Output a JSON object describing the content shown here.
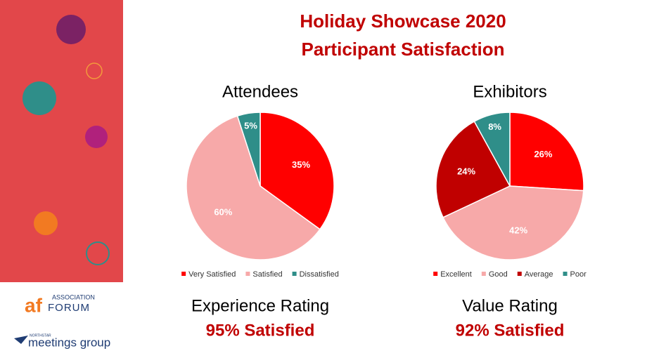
{
  "title": "Holiday Showcase 2020",
  "subtitle": "Participant Satisfaction",
  "chart_data": [
    {
      "type": "pie",
      "title": "Attendees",
      "categories": [
        "Very Satisfied",
        "Satisfied",
        "Dissatisfied"
      ],
      "values": [
        35,
        60,
        5
      ],
      "value_labels": [
        "35%",
        "60%",
        "5%"
      ],
      "colors": [
        "#ff0000",
        "#f7a9a9",
        "#2f8e89"
      ],
      "rating_label": "Experience Rating",
      "rating_value": "95% Satisfied"
    },
    {
      "type": "pie",
      "title": "Exhibitors",
      "categories": [
        "Excellent",
        "Good",
        "Average",
        "Poor"
      ],
      "values": [
        26,
        42,
        24,
        8
      ],
      "value_labels": [
        "26%",
        "42%",
        "24%",
        "8%"
      ],
      "colors": [
        "#ff0000",
        "#f7a9a9",
        "#c00000",
        "#2f8e89"
      ],
      "rating_label": "Value Rating",
      "rating_value": "92% Satisfied"
    }
  ],
  "logos": {
    "association_forum": {
      "mark": "af",
      "line1": "ASSOCIATION",
      "line2": "FORUM"
    },
    "meetings_group": {
      "small": "NORTHSTAR",
      "name": "meetings group"
    }
  }
}
